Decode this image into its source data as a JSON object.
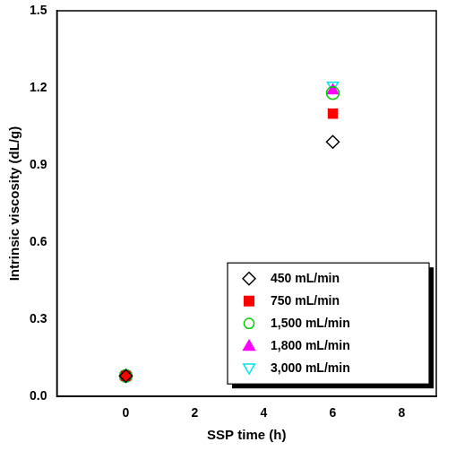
{
  "chart_data": {
    "type": "scatter",
    "x_label": "SSP time (h)",
    "y_label": "Intrinsic viscosity (dL/g)",
    "x": [
      0,
      6
    ],
    "series": [
      {
        "name": "450 mL/min",
        "color": "#000000",
        "marker": "diamond-open",
        "values": [
          0.08,
          0.99
        ]
      },
      {
        "name": "750 mL/min",
        "color": "#ff0000",
        "marker": "square",
        "values": [
          0.08,
          1.1
        ]
      },
      {
        "name": "1,500 mL/min",
        "color": "#00cc00",
        "marker": "circle-open",
        "values": [
          0.08,
          1.18
        ]
      },
      {
        "name": "1,800 mL/min",
        "color": "#ff00ff",
        "marker": "triangle",
        "values": [
          0.08,
          1.19
        ]
      },
      {
        "name": "3,000 mL/min",
        "color": "#00e5ee",
        "marker": "triangle-down-open",
        "values": [
          0.08,
          1.21
        ]
      }
    ],
    "xlim": [
      -2,
      9
    ],
    "xticks": [
      0,
      2,
      4,
      6,
      8
    ],
    "ylim": [
      0,
      1.5
    ],
    "yticks": [
      {
        "value": 0,
        "label": "0.0"
      },
      0.3,
      0.6,
      0.9,
      1.2,
      1.5
    ],
    "grid": false,
    "legend": "bottom-right"
  }
}
